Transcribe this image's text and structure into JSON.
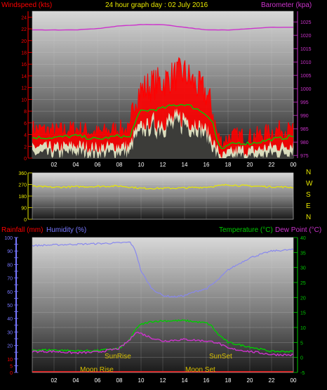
{
  "header": {
    "title": "24 hour graph day : 02 July 2016",
    "windspeed_label": "Windspeed (kts)",
    "barometer_label": "Barometer (kpa)"
  },
  "direction_letters": [
    "N",
    "W",
    "S",
    "E",
    "N"
  ],
  "bottom": {
    "rainfall_label": "Rainfall (mm)",
    "humidity_label": "Humidity (%)",
    "temperature_label": "Temperature (°C)",
    "dewpoint_label": "Dew Point (°C)",
    "sunrise_label": "SunRise",
    "sunset_label": "SunSet",
    "moonrise_label": "Moon Rise",
    "moonset_label": "Moon Set"
  },
  "colors": {
    "windspeed": "#ff0000",
    "wind_avg": "#00cc00",
    "wind_min": "#d8f4d0",
    "barometer": "#cc33cc",
    "direction": "#e8e800",
    "humidity": "#8888ee",
    "temperature": "#00cc00",
    "dewpoint": "#cc33cc",
    "rainfall": "#ff2222",
    "text_red": "#ff0000",
    "text_magenta": "#cc33cc",
    "text_yellow": "#e8e800",
    "text_blue": "#7777ff",
    "text_green": "#00cc00",
    "sun_text": "#d8c000"
  },
  "chart_data": [
    {
      "type": "line",
      "x_tick_labels": [
        "02",
        "04",
        "06",
        "08",
        "10",
        "12",
        "14",
        "16",
        "18",
        "20",
        "22",
        "00"
      ],
      "x_hours": [
        0,
        24
      ],
      "y_left_ticks": [
        0,
        2,
        4,
        6,
        8,
        10,
        12,
        14,
        16,
        18,
        20,
        22,
        24
      ],
      "y_left_range": [
        0,
        25
      ],
      "y_right_ticks": [
        975,
        980,
        985,
        990,
        995,
        1000,
        1005,
        1010,
        1015,
        1020,
        1025
      ],
      "y_right_range": [
        974,
        1029
      ],
      "series": [
        {
          "key": "barometer",
          "axis": "right",
          "x": [
            0,
            4,
            6,
            8,
            10,
            12,
            14,
            16,
            18,
            20,
            22,
            24
          ],
          "values": [
            1022,
            1022,
            1022.5,
            1023.5,
            1024,
            1024,
            1023,
            1022,
            1022,
            1022.5,
            1023,
            1023
          ]
        },
        {
          "key": "windspeed",
          "axis": "left",
          "x": [
            0,
            2,
            4,
            6,
            8,
            9,
            9.4,
            10,
            11,
            12,
            13,
            14,
            15,
            16,
            16.6,
            17,
            17.5,
            18,
            19,
            20,
            21,
            22,
            23,
            24
          ],
          "values": [
            5,
            4.5,
            5,
            4.2,
            5,
            4.5,
            10.5,
            11.5,
            12.5,
            13,
            14,
            14.5,
            12.5,
            11,
            8,
            4,
            2.5,
            3.5,
            3.8,
            3.6,
            4,
            4.5,
            5,
            4.5
          ]
        },
        {
          "key": "wind_avg",
          "axis": "left",
          "x": [
            0,
            2,
            4,
            6,
            8,
            9,
            9.4,
            10,
            11,
            12,
            13,
            14,
            15,
            16,
            16.6,
            17,
            17.5,
            18,
            19,
            20,
            21,
            22,
            23,
            24
          ],
          "values": [
            3.5,
            3.5,
            3.8,
            3.2,
            3.8,
            3.5,
            6,
            8,
            8.2,
            8.5,
            9,
            9.2,
            8.5,
            7.5,
            6,
            3,
            1.2,
            2.2,
            2.6,
            2.5,
            2.8,
            3.2,
            3.4,
            3.8
          ]
        },
        {
          "key": "wind_min",
          "axis": "left",
          "x": [
            0,
            2,
            4,
            6,
            8,
            9,
            9.4,
            10,
            11,
            12,
            13,
            14,
            15,
            16,
            16.6,
            17,
            17.5,
            18,
            19,
            20,
            21,
            22,
            23,
            24
          ],
          "values": [
            2,
            1.8,
            2.2,
            1.8,
            2.2,
            2,
            4.5,
            5.5,
            6,
            6.5,
            6.5,
            7,
            6,
            5,
            3,
            1.5,
            0.2,
            0.8,
            1.5,
            1.2,
            1.6,
            2,
            2,
            2.5
          ]
        }
      ]
    },
    {
      "type": "line",
      "x_tick_labels": [
        "02",
        "04",
        "06",
        "08",
        "10",
        "12",
        "14",
        "16",
        "18",
        "20",
        "22",
        "00"
      ],
      "x_hours": [
        0,
        24
      ],
      "y_ticks": [
        0,
        90,
        180,
        270,
        360
      ],
      "y_range": [
        0,
        360
      ],
      "series": [
        {
          "key": "direction",
          "x": [
            0,
            2,
            4,
            6,
            8,
            9,
            10,
            12,
            14,
            16,
            17,
            18,
            19,
            20,
            22,
            24
          ],
          "values": [
            255,
            248,
            252,
            255,
            258,
            250,
            240,
            240,
            243,
            250,
            258,
            268,
            262,
            258,
            252,
            248
          ]
        }
      ]
    },
    {
      "type": "line",
      "x_tick_labels": [
        "02",
        "04",
        "06",
        "08",
        "10",
        "12",
        "14",
        "16",
        "18",
        "20",
        "22",
        "00"
      ],
      "x_hours": [
        0,
        24
      ],
      "y_left_ticks": [
        0,
        5,
        10,
        15,
        20,
        25,
        30,
        35,
        40,
        45,
        50,
        55,
        60,
        65,
        70,
        75,
        80,
        85,
        90,
        95,
        100
      ],
      "y_left_range": [
        0,
        100
      ],
      "y_right_ticks": [
        -5,
        0,
        5,
        10,
        15,
        20,
        25,
        30,
        35,
        40
      ],
      "y_right_range": [
        -5,
        40
      ],
      "series": [
        {
          "key": "humidity",
          "axis": "left",
          "x": [
            0,
            2,
            4,
            6,
            8,
            9,
            9.5,
            10,
            11,
            12,
            13,
            14,
            15,
            16,
            17,
            18,
            20,
            22,
            24
          ],
          "values": [
            94,
            94.5,
            95,
            95.5,
            96,
            96.5,
            90,
            75,
            62,
            57,
            56,
            57,
            60,
            62,
            68,
            76,
            85,
            90,
            91
          ]
        },
        {
          "key": "temperature",
          "axis": "right",
          "x": [
            0,
            2,
            4,
            6,
            8,
            9,
            9.5,
            10,
            11,
            12,
            14,
            16,
            16.5,
            17,
            18,
            20,
            22,
            24
          ],
          "values": [
            2.5,
            2.5,
            2.2,
            2.3,
            3,
            6,
            9.5,
            11,
            12,
            12.2,
            12.3,
            11.5,
            10.5,
            8,
            5,
            3.5,
            2,
            2
          ]
        },
        {
          "key": "dewpoint",
          "axis": "right",
          "x": [
            0,
            2,
            4,
            6,
            8,
            9,
            9.5,
            10,
            11,
            12,
            14,
            16,
            17,
            18,
            20,
            22,
            24
          ],
          "values": [
            2,
            2,
            1.5,
            1.8,
            3,
            6,
            8.5,
            8,
            6.5,
            5.5,
            6,
            5.5,
            5,
            3,
            2,
            1,
            0.8
          ]
        },
        {
          "key": "rainfall",
          "axis": "left",
          "x": [
            0,
            24
          ],
          "values": [
            0,
            0
          ]
        }
      ],
      "markers": {
        "sunrise_hour": 7.6,
        "sunset_hour": 17.1
      }
    }
  ]
}
